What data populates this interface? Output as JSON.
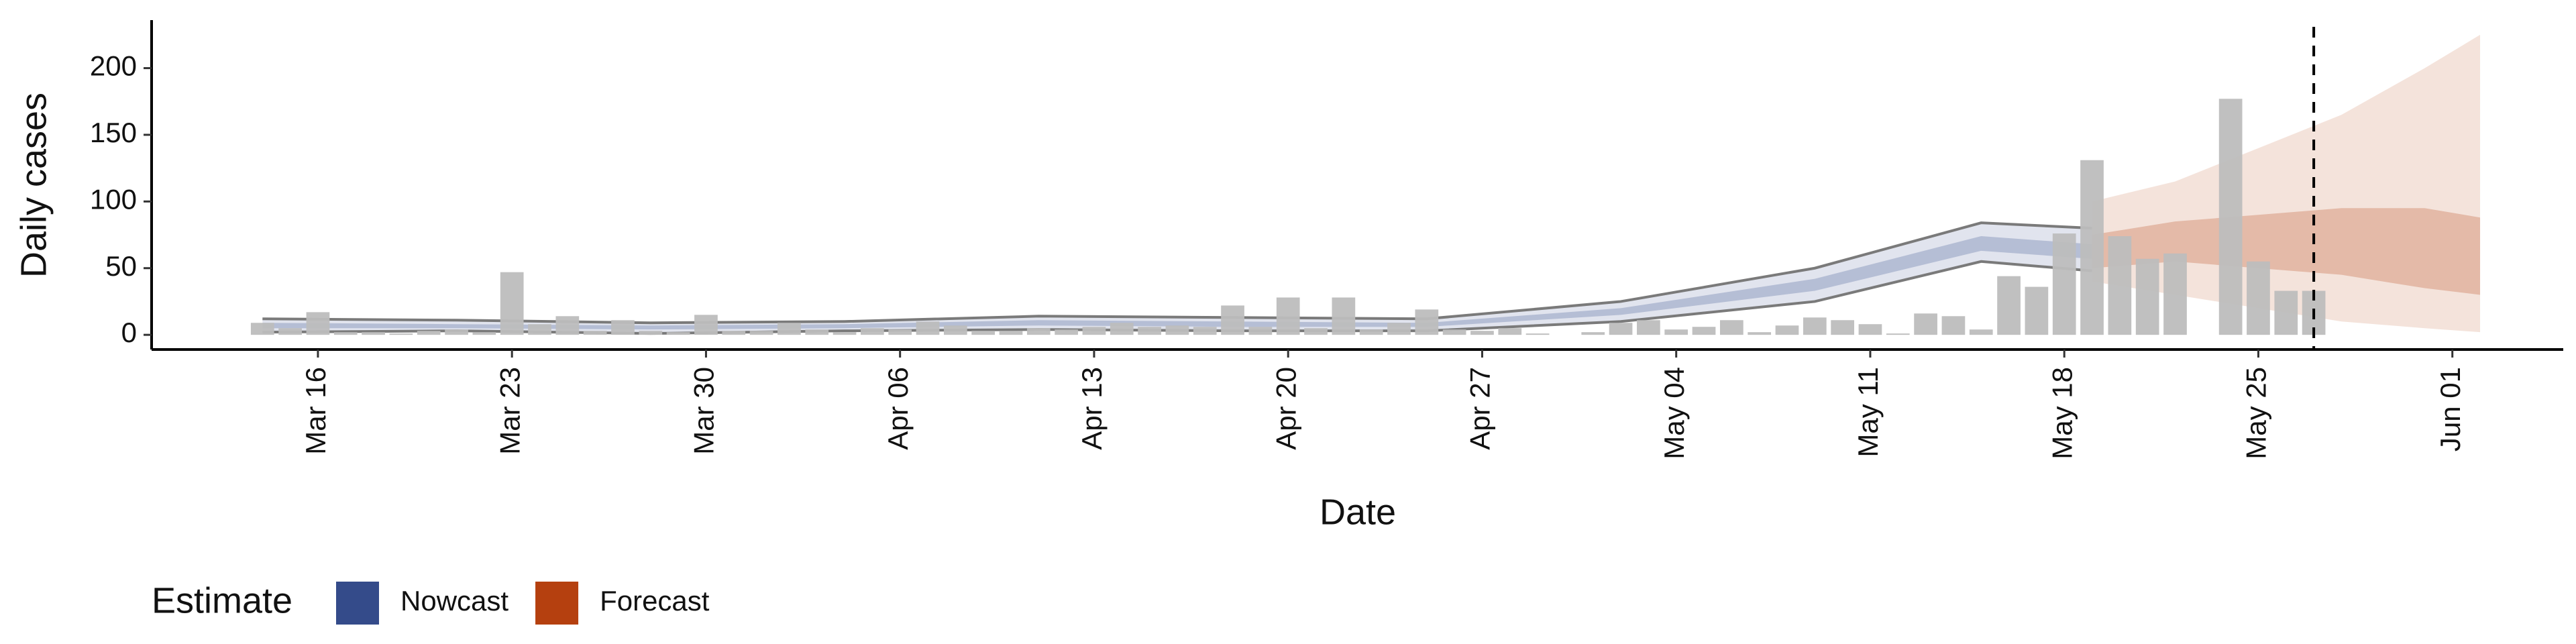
{
  "chart_data": {
    "type": "bar",
    "xlabel": "Date",
    "ylabel": "Daily cases",
    "color": "#bdbdbd",
    "x": [
      "Mar 14",
      "Mar 15",
      "Mar 16",
      "Mar 17",
      "Mar 18",
      "Mar 19",
      "Mar 20",
      "Mar 21",
      "Mar 22",
      "Mar 23",
      "Mar 24",
      "Mar 25",
      "Mar 26",
      "Mar 27",
      "Mar 28",
      "Mar 29",
      "Mar 30",
      "Mar 31",
      "Apr 01",
      "Apr 02",
      "Apr 03",
      "Apr 04",
      "Apr 05",
      "Apr 06",
      "Apr 07",
      "Apr 08",
      "Apr 09",
      "Apr 10",
      "Apr 11",
      "Apr 12",
      "Apr 13",
      "Apr 14",
      "Apr 15",
      "Apr 16",
      "Apr 17",
      "Apr 18",
      "Apr 19",
      "Apr 20",
      "Apr 21",
      "Apr 22",
      "Apr 23",
      "Apr 24",
      "Apr 25",
      "Apr 26",
      "Apr 27",
      "Apr 28",
      "Apr 29",
      "Apr 30",
      "May 01",
      "May 02",
      "May 03",
      "May 04",
      "May 05",
      "May 06",
      "May 07",
      "May 08",
      "May 09",
      "May 10",
      "May 11",
      "May 12",
      "May 13",
      "May 14",
      "May 15",
      "May 16",
      "May 17",
      "May 18",
      "May 19",
      "May 20",
      "May 21",
      "May 22",
      "May 23",
      "May 24",
      "May 25",
      "May 26",
      "May 27"
    ],
    "values": [
      9,
      5,
      17,
      2,
      2,
      1,
      3,
      4,
      2,
      47,
      8,
      14,
      3,
      11,
      3,
      2,
      15,
      3,
      3,
      9,
      4,
      2,
      5,
      4,
      10,
      7,
      3,
      3,
      5,
      4,
      6,
      9,
      6,
      7,
      6,
      22,
      6,
      28,
      5,
      28,
      4,
      9,
      19,
      4,
      3,
      5,
      1,
      0,
      2,
      9,
      11,
      4,
      6,
      11,
      2,
      7,
      13,
      11,
      8,
      1,
      16,
      14,
      4,
      44,
      36,
      76,
      131,
      74,
      57,
      61,
      0,
      177,
      55,
      33,
      33
    ],
    "series": [
      {
        "name": "Nowcast",
        "color": "#344b8a",
        "outline": "#7a7a7a",
        "x": [
          "Mar 14",
          "Mar 21",
          "Mar 28",
          "Apr 04",
          "Apr 11",
          "Apr 18",
          "Apr 25",
          "May 02",
          "May 09",
          "May 15",
          "May 19"
        ],
        "upper90": [
          12,
          11,
          9,
          10,
          14,
          13,
          12,
          25,
          50,
          84,
          80
        ],
        "lower90": [
          2,
          3,
          1,
          3,
          4,
          3,
          3,
          10,
          25,
          55,
          48
        ],
        "upper50": [
          9,
          8,
          7,
          8,
          11,
          10,
          9,
          20,
          42,
          74,
          68
        ],
        "lower50": [
          5,
          5,
          4,
          5,
          7,
          6,
          6,
          15,
          33,
          63,
          57
        ]
      },
      {
        "name": "Forecast",
        "color": "#b5400f",
        "x": [
          "May 19",
          "May 22",
          "May 25",
          "May 28",
          "May 31",
          "Jun 02"
        ],
        "upper90": [
          100,
          115,
          140,
          165,
          200,
          225
        ],
        "lower90": [
          40,
          30,
          20,
          10,
          5,
          2
        ],
        "upper50": [
          75,
          85,
          90,
          95,
          95,
          88
        ],
        "lower50": [
          50,
          55,
          50,
          45,
          35,
          30
        ]
      }
    ],
    "vline": "May 27",
    "legend_title": "Estimate",
    "legend": "bottom-left",
    "xlim": [
      "Mar 10",
      "Jun 05"
    ],
    "xticks": [
      "Mar 16",
      "Mar 23",
      "Mar 30",
      "Apr 06",
      "Apr 13",
      "Apr 20",
      "Apr 27",
      "May 04",
      "May 11",
      "May 18",
      "May 25",
      "Jun 01"
    ],
    "ylim": [
      -11,
      236
    ],
    "yticks": [
      0,
      50,
      100,
      150,
      200
    ]
  }
}
